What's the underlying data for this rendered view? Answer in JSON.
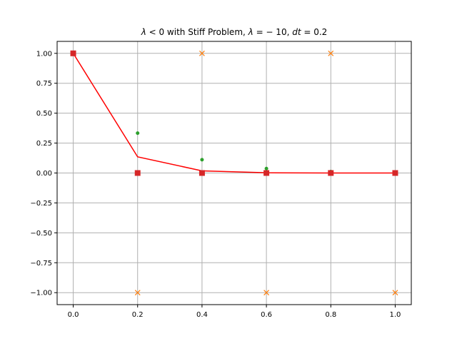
{
  "chart_data": {
    "type": "line",
    "title": "λ < 0 with Stiff Problem, λ = − 10, dt = 0.2",
    "title_parts": {
      "p1": "λ",
      "p2": " < 0 with Stiff Problem, ",
      "p3": "λ",
      "p4": " = − 10, ",
      "p5": "dt",
      "p6": " = 0.2"
    },
    "xlabel": "",
    "ylabel": "",
    "xlim": [
      -0.05,
      1.05
    ],
    "ylim": [
      -1.1,
      1.1
    ],
    "xticks": [
      0.0,
      0.2,
      0.4,
      0.6,
      0.8,
      1.0
    ],
    "xtick_labels": [
      "0.0",
      "0.2",
      "0.4",
      "0.6",
      "0.8",
      "1.0"
    ],
    "yticks": [
      1.0,
      0.75,
      0.5,
      0.25,
      0.0,
      -0.25,
      -0.5,
      -0.75,
      -1.0
    ],
    "ytick_labels": [
      "1.00",
      "0.75",
      "0.50",
      "0.25",
      "0.00",
      "−0.25",
      "−0.50",
      "−0.75",
      "−1.00"
    ],
    "grid": true,
    "series": [
      {
        "marker": "x",
        "color": "#ff7f0e",
        "x": [
          0.0,
          0.2,
          0.4,
          0.6,
          0.8,
          1.0
        ],
        "y": [
          1.0,
          -1.0,
          1.0,
          -1.0,
          1.0,
          -1.0
        ]
      },
      {
        "marker": "dot",
        "color": "#2ca02c",
        "x": [
          0.0,
          0.2,
          0.4,
          0.6,
          0.8,
          1.0
        ],
        "y": [
          1.0,
          0.333,
          0.111,
          0.037,
          0.012,
          0.004
        ]
      },
      {
        "marker": "line",
        "color": "#ff0000",
        "x": [
          0.0,
          0.2,
          0.4,
          0.6,
          0.8,
          1.0
        ],
        "y": [
          1.0,
          0.135,
          0.018,
          0.002,
          0.0,
          0.0
        ]
      },
      {
        "marker": "square",
        "color": "#d62728",
        "x": [
          0.0,
          0.2,
          0.4,
          0.6,
          0.8,
          1.0
        ],
        "y": [
          1.0,
          0.0,
          0.0,
          0.0,
          0.0,
          0.0
        ]
      }
    ]
  }
}
